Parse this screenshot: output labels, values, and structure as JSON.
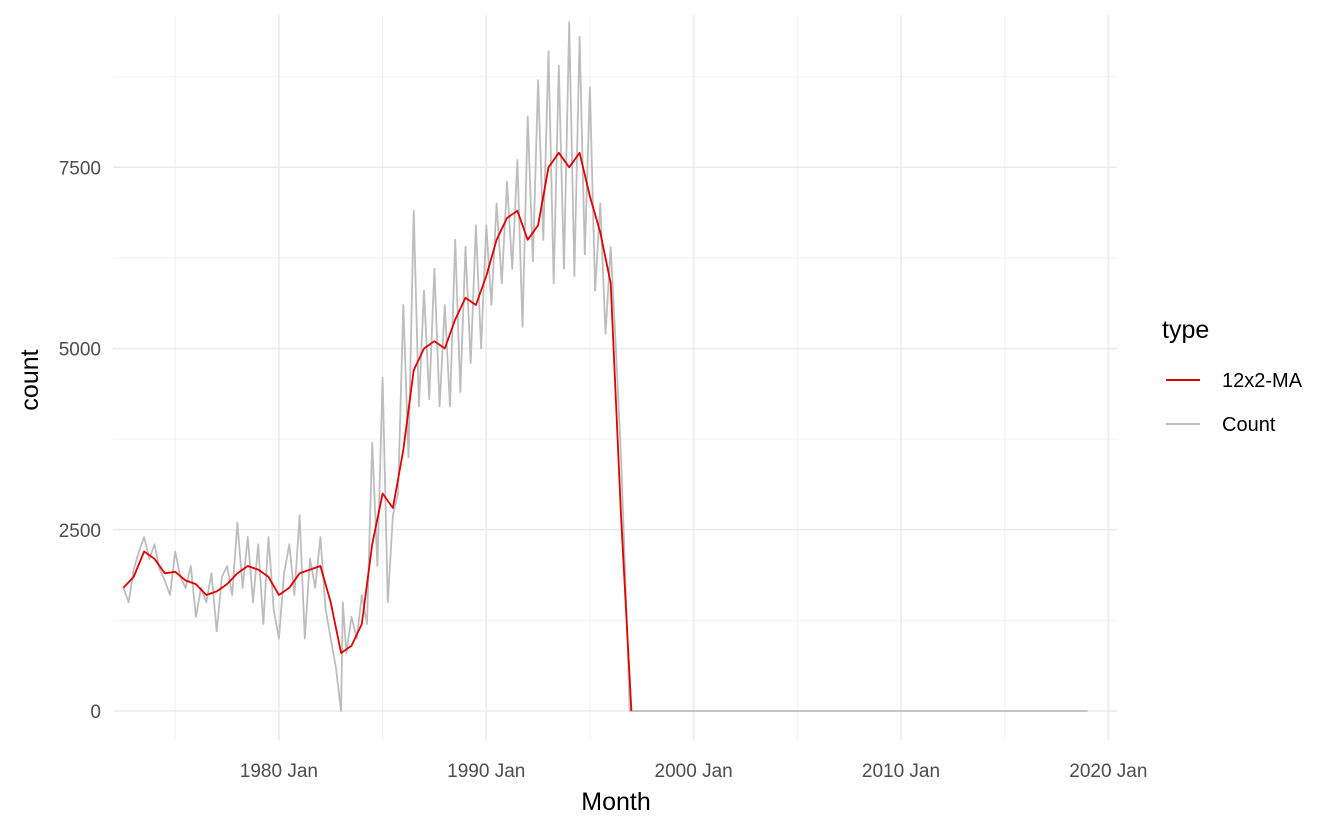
{
  "chart_data": {
    "type": "line",
    "title": "",
    "xlabel": "Month",
    "ylabel": "count",
    "x_range": [
      "1972-01",
      "2020-06"
    ],
    "ylim": [
      -400,
      9600
    ],
    "x_ticks": [
      {
        "date": "1980-01",
        "label": "1980 Jan"
      },
      {
        "date": "1990-01",
        "label": "1990 Jan"
      },
      {
        "date": "2000-01",
        "label": "2000 Jan"
      },
      {
        "date": "2010-01",
        "label": "2010 Jan"
      },
      {
        "date": "2020-01",
        "label": "2020 Jan"
      }
    ],
    "x_minor_ticks": [
      "1975-01",
      "1985-01",
      "1995-01",
      "2005-01",
      "2015-01"
    ],
    "y_ticks": [
      0,
      2500,
      5000,
      7500
    ],
    "y_minor_ticks": [
      1250,
      3750,
      6250,
      8750
    ],
    "grid": true,
    "legend": {
      "title": "type",
      "position": "right",
      "entries": [
        {
          "label": "12x2-MA",
          "color": "#e00000"
        },
        {
          "label": "Count",
          "color": "#bdbdbd"
        }
      ]
    },
    "series": [
      {
        "name": "Count",
        "color": "#bdbdbd",
        "points": [
          [
            "1972-07",
            1700
          ],
          [
            "1972-10",
            1500
          ],
          [
            "1973-01",
            1950
          ],
          [
            "1973-04",
            2200
          ],
          [
            "1973-07",
            2400
          ],
          [
            "1973-10",
            2100
          ],
          [
            "1974-01",
            2300
          ],
          [
            "1974-04",
            1950
          ],
          [
            "1974-07",
            1800
          ],
          [
            "1974-10",
            1600
          ],
          [
            "1975-01",
            2200
          ],
          [
            "1975-04",
            1850
          ],
          [
            "1975-07",
            1700
          ],
          [
            "1975-10",
            2000
          ],
          [
            "1976-01",
            1300
          ],
          [
            "1976-04",
            1700
          ],
          [
            "1976-07",
            1500
          ],
          [
            "1976-10",
            1900
          ],
          [
            "1977-01",
            1100
          ],
          [
            "1977-04",
            1850
          ],
          [
            "1977-07",
            2000
          ],
          [
            "1977-10",
            1600
          ],
          [
            "1978-01",
            2600
          ],
          [
            "1978-04",
            1700
          ],
          [
            "1978-07",
            2400
          ],
          [
            "1978-10",
            1500
          ],
          [
            "1979-01",
            2300
          ],
          [
            "1979-04",
            1200
          ],
          [
            "1979-07",
            2400
          ],
          [
            "1979-10",
            1400
          ],
          [
            "1980-01",
            1000
          ],
          [
            "1980-04",
            1900
          ],
          [
            "1980-07",
            2300
          ],
          [
            "1980-10",
            1600
          ],
          [
            "1981-01",
            2700
          ],
          [
            "1981-04",
            1000
          ],
          [
            "1981-07",
            2100
          ],
          [
            "1981-10",
            1700
          ],
          [
            "1982-01",
            2400
          ],
          [
            "1982-04",
            1400
          ],
          [
            "1982-07",
            1000
          ],
          [
            "1982-10",
            600
          ],
          [
            "1983-01",
            0
          ],
          [
            "1983-02",
            1500
          ],
          [
            "1983-04",
            800
          ],
          [
            "1983-07",
            1300
          ],
          [
            "1983-10",
            1000
          ],
          [
            "1984-01",
            1600
          ],
          [
            "1984-04",
            1200
          ],
          [
            "1984-07",
            3700
          ],
          [
            "1984-10",
            2000
          ],
          [
            "1985-01",
            4600
          ],
          [
            "1985-04",
            1500
          ],
          [
            "1985-07",
            2700
          ],
          [
            "1985-10",
            3000
          ],
          [
            "1986-01",
            5600
          ],
          [
            "1986-04",
            3500
          ],
          [
            "1986-07",
            6900
          ],
          [
            "1986-10",
            4200
          ],
          [
            "1987-01",
            5800
          ],
          [
            "1987-04",
            4300
          ],
          [
            "1987-07",
            6100
          ],
          [
            "1987-10",
            4200
          ],
          [
            "1988-01",
            5600
          ],
          [
            "1988-04",
            4200
          ],
          [
            "1988-07",
            6500
          ],
          [
            "1988-10",
            4400
          ],
          [
            "1989-01",
            6400
          ],
          [
            "1989-04",
            4800
          ],
          [
            "1989-07",
            6700
          ],
          [
            "1989-10",
            5000
          ],
          [
            "1990-01",
            6700
          ],
          [
            "1990-04",
            5600
          ],
          [
            "1990-07",
            7000
          ],
          [
            "1990-10",
            5900
          ],
          [
            "1991-01",
            7300
          ],
          [
            "1991-04",
            6100
          ],
          [
            "1991-07",
            7600
          ],
          [
            "1991-10",
            5300
          ],
          [
            "1992-01",
            8200
          ],
          [
            "1992-04",
            6200
          ],
          [
            "1992-07",
            8700
          ],
          [
            "1992-10",
            6500
          ],
          [
            "1993-01",
            9100
          ],
          [
            "1993-04",
            5900
          ],
          [
            "1993-07",
            8900
          ],
          [
            "1993-10",
            6100
          ],
          [
            "1994-01",
            9500
          ],
          [
            "1994-04",
            6000
          ],
          [
            "1994-07",
            9300
          ],
          [
            "1994-10",
            6300
          ],
          [
            "1995-01",
            8600
          ],
          [
            "1995-04",
            5800
          ],
          [
            "1995-07",
            7000
          ],
          [
            "1995-10",
            5200
          ],
          [
            "1996-01",
            6400
          ],
          [
            "1996-04",
            5000
          ],
          [
            "1996-07",
            3500
          ],
          [
            "1996-10",
            1500
          ],
          [
            "1996-12",
            0
          ],
          [
            "2019-01",
            0
          ]
        ]
      },
      {
        "name": "12x2-MA",
        "color": "#e00000",
        "points": [
          [
            "1972-07",
            1700
          ],
          [
            "1973-01",
            1850
          ],
          [
            "1973-07",
            2200
          ],
          [
            "1974-01",
            2100
          ],
          [
            "1974-07",
            1900
          ],
          [
            "1975-01",
            1920
          ],
          [
            "1975-07",
            1800
          ],
          [
            "1976-01",
            1750
          ],
          [
            "1976-07",
            1600
          ],
          [
            "1977-01",
            1650
          ],
          [
            "1977-07",
            1750
          ],
          [
            "1978-01",
            1900
          ],
          [
            "1978-07",
            2000
          ],
          [
            "1979-01",
            1950
          ],
          [
            "1979-07",
            1850
          ],
          [
            "1980-01",
            1600
          ],
          [
            "1980-07",
            1700
          ],
          [
            "1981-01",
            1900
          ],
          [
            "1981-07",
            1950
          ],
          [
            "1982-01",
            2000
          ],
          [
            "1982-07",
            1500
          ],
          [
            "1983-01",
            800
          ],
          [
            "1983-07",
            900
          ],
          [
            "1984-01",
            1200
          ],
          [
            "1984-07",
            2300
          ],
          [
            "1985-01",
            3000
          ],
          [
            "1985-07",
            2800
          ],
          [
            "1986-01",
            3600
          ],
          [
            "1986-07",
            4700
          ],
          [
            "1987-01",
            5000
          ],
          [
            "1987-07",
            5100
          ],
          [
            "1988-01",
            5000
          ],
          [
            "1988-07",
            5400
          ],
          [
            "1989-01",
            5700
          ],
          [
            "1989-07",
            5600
          ],
          [
            "1990-01",
            6000
          ],
          [
            "1990-07",
            6500
          ],
          [
            "1991-01",
            6800
          ],
          [
            "1991-07",
            6900
          ],
          [
            "1992-01",
            6500
          ],
          [
            "1992-07",
            6700
          ],
          [
            "1993-01",
            7500
          ],
          [
            "1993-07",
            7700
          ],
          [
            "1994-01",
            7500
          ],
          [
            "1994-07",
            7700
          ],
          [
            "1995-01",
            7100
          ],
          [
            "1995-07",
            6600
          ],
          [
            "1996-01",
            5900
          ],
          [
            "1996-07",
            2700
          ],
          [
            "1997-01",
            0
          ]
        ]
      }
    ]
  }
}
